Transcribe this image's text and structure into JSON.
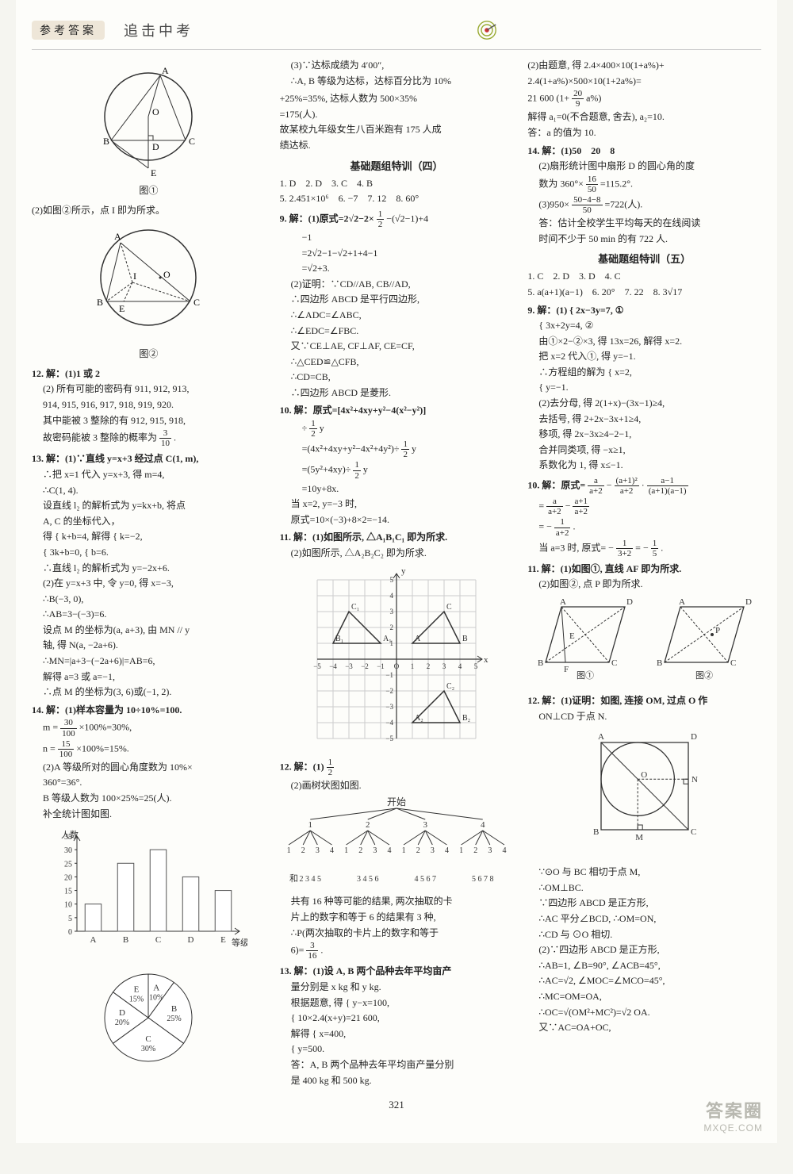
{
  "header": {
    "ref": "参考答案",
    "title": "追击中考"
  },
  "page_number": "321",
  "watermark": {
    "line1": "答案圈",
    "line2": "MXQE.COM"
  },
  "col1": {
    "fig1_label": "图①",
    "fig1": {
      "pts": {
        "A": "A",
        "B": "B",
        "C": "C",
        "D": "D",
        "E": "E",
        "O": "O"
      }
    },
    "l_2": "(2)如图②所示，点 I 即为所求。",
    "fig2_label": "图②",
    "fig2": {
      "pts": {
        "A": "A",
        "B": "B",
        "C": "C",
        "E": "E",
        "O": "O",
        "I": "I"
      }
    },
    "q12_head": "12. 解：(1)1 或 2",
    "q12_a": "(2) 所有可能的密码有 911, 912, 913,",
    "q12_b": "914, 915, 916, 917, 918, 919, 920.",
    "q12_c": "其中能被 3 整除的有 912, 915, 918,",
    "q12_d_pre": "故密码能被 3 整除的概率为",
    "q12_frac_n": "3",
    "q12_frac_d": "10",
    "q12_d_post": ".",
    "q13_head": "13. 解：(1)∵直线 y=x+3 经过点 C(1, m),",
    "q13_a": "∴把 x=1 代入 y=x+3, 得 m=4,",
    "q13_b": "∴C(1, 4).",
    "q13_c": "设直线 l₂ 的解析式为 y=kx+b, 将点",
    "q13_d": "A, C 的坐标代入，",
    "q13_e": "得 { k+b=4,  解得 { k=−2,",
    "q13_e2": "   { 3k+b=0,      { b=6.",
    "q13_f": "∴直线 l₂ 的解析式为 y=−2x+6.",
    "q13_g": "(2)在 y=x+3 中, 令 y=0, 得 x=−3,",
    "q13_h": "∴B(−3, 0),",
    "q13_i": "∴AB=3−(−3)=6.",
    "q13_j": "设点 M 的坐标为(a, a+3), 由 MN // y",
    "q13_k": "轴, 得 N(a, −2a+6).",
    "q13_l": "∴MN=|a+3−(−2a+6)|=AB=6,",
    "q13_m": "解得 a=3 或 a=−1,",
    "q13_n": "∴点 M 的坐标为(3, 6)或(−1, 2).",
    "q14_head": "14. 解：(1)样本容量为 10÷10%=100.",
    "q14_m_pre": "m =",
    "q14_m_n": "30",
    "q14_m_d": "100",
    "q14_m_post": "×100%=30%,",
    "q14_n_pre": "n =",
    "q14_n_n": "15",
    "q14_n_d": "100",
    "q14_n_post": "×100%=15%.",
    "q14_a": "(2)A 等级所对的圆心角度数为 10%×",
    "q14_b": "360°=36°.",
    "q14_c": "B 等级人数为 100×25%=25(人).",
    "q14_d": "补全统计图如图.",
    "bar": {
      "type": "bar",
      "ylabel": "人数",
      "xlabel": "等级",
      "categories": [
        "A",
        "B",
        "C",
        "D",
        "E"
      ],
      "values": [
        10,
        25,
        30,
        20,
        15
      ],
      "ylim": [
        0,
        35
      ],
      "ytick_step": 5,
      "yticks": [
        "0",
        "5",
        "10",
        "15",
        "20",
        "25",
        "30",
        "35"
      ],
      "bar_color": "#ffffff",
      "bar_stroke": "#555555",
      "axis_color": "#333333",
      "bar_width": 0.5
    },
    "pie": {
      "type": "pie",
      "slices": [
        {
          "label": "A",
          "pct": "10%",
          "value": 10
        },
        {
          "label": "B",
          "pct": "25%",
          "value": 25
        },
        {
          "label": "C",
          "pct": "30%",
          "value": 30
        },
        {
          "label": "D",
          "pct": "20%",
          "value": 20
        },
        {
          "label": "E",
          "pct": "15%",
          "value": 15
        }
      ],
      "fill_color": "#ffffff",
      "stroke_color": "#333333"
    },
    "q14_e": "(3)∵达标成绩为 4′00″,",
    "q14_f": "∴A, B 等级为达标，达标百分比为 10%"
  },
  "col2": {
    "cont_a": "+25%=35%, 达标人数为 500×35%",
    "cont_b": "=175(人).",
    "cont_c": "故某校九年级女生八百米跑有 175 人成",
    "cont_d": "绩达标.",
    "sec4_title": "基础题组特训（四）",
    "s4_r1": "1. D　2. D　3. C　4. B",
    "s4_r2": "5. 2.451×10⁶　6. −7　7. 12　8. 60°",
    "q9_head": "9. 解：(1)原式=2√2−2×",
    "q9_frac1_n": "1",
    "q9_frac1_d": "2",
    "q9_head_b": "−(√2−1)+4",
    "q9_a": "−1",
    "q9_b": "=2√2−1−√2+1+4−1",
    "q9_c": "=√2+3.",
    "q9_d": "(2)证明：∵CD//AB, CB//AD,",
    "q9_e": "∴四边形 ABCD 是平行四边形,",
    "q9_f": "∴∠ADC=∠ABC,",
    "q9_g": "∴∠EDC=∠FBC.",
    "q9_h": "又∵CE⊥AE, CF⊥AF, CE=CF,",
    "q9_i": "∴△CED≌△CFB,",
    "q9_j": "∴CD=CB,",
    "q9_k": "∴四边形 ABCD 是菱形.",
    "q10_head": "10. 解：原式=[4x²+4xy+y²−4(x²−y²)]",
    "q10_a_pre": "÷",
    "q10_a_n": "1",
    "q10_a_d": "2",
    "q10_a_post": " y",
    "q10_b": "=(4x²+4xy+y²−4x²+4y²)÷",
    "q10_b_n": "1",
    "q10_b_d": "2",
    "q10_b_post": " y",
    "q10_c_pre": "=(5y²+4xy)÷",
    "q10_c_n": "1",
    "q10_c_d": "2",
    "q10_c_post": " y",
    "q10_d": "=10y+8x.",
    "q10_e": "当 x=2, y=−3 时,",
    "q10_f": "原式=10×(−3)+8×2=−14.",
    "q11_head": "11. 解：(1)如图所示, △A₁B₁C₁ 即为所求.",
    "q11_a": "(2)如图所示, △A₂B₂C₂ 即为所求.",
    "grid": {
      "type": "scatter",
      "xlim": [
        -5,
        5
      ],
      "ylim": [
        -5,
        5
      ],
      "xticks": [
        "−5",
        "−4",
        "−3",
        "−2",
        "−1",
        "O",
        "1",
        "2",
        "3",
        "4",
        "5"
      ],
      "yticks": [
        "−5",
        "−4",
        "−3",
        "−2",
        "−1",
        "",
        "1",
        "2",
        "3",
        "4",
        "5"
      ],
      "grid_color": "#cccccc",
      "axis_color": "#333333",
      "xlabel": "x",
      "ylabel": "y",
      "tri_A": {
        "pts": [
          [
            1,
            1
          ],
          [
            4,
            1
          ],
          [
            3,
            3
          ]
        ],
        "labels": [
          "A",
          "B",
          "C"
        ],
        "stroke": "#333"
      },
      "tri_1": {
        "pts": [
          [
            -1,
            1
          ],
          [
            -4,
            1
          ],
          [
            -3,
            3
          ]
        ],
        "labels": [
          "A₁",
          "B₁",
          "C₁"
        ],
        "stroke": "#333"
      },
      "tri_2": {
        "pts": [
          [
            1,
            -4
          ],
          [
            4,
            -4
          ],
          [
            3,
            -2
          ]
        ],
        "labels": [
          "A₂",
          "B₂",
          "C₂"
        ],
        "stroke": "#333"
      }
    },
    "q12_head": "12. 解：(1)",
    "q12_n": "1",
    "q12_d": "2",
    "q12_a": "(2)画树状图如图.",
    "tree": {
      "root": "开始",
      "level1": [
        "1",
        "2",
        "3",
        "4"
      ],
      "level2": [
        "1 2 3 4",
        "1 2 3 4",
        "1 2 3 4",
        "1 2 3 4"
      ],
      "sumlabel": "和",
      "sums": [
        "2 3 4 5",
        "3 4 5 6",
        "4 5 6 7",
        "5 6 7 8"
      ],
      "stroke": "#333333"
    },
    "q12_b": "共有 16 种等可能的结果, 两次抽取的卡",
    "q12_c": "片上的数字和等于 6 的结果有 3 种,",
    "q12_d_pre": "∴P(两次抽取的卡片上的数字和等于",
    "q12_e_pre": "6)=",
    "q12_e_n": "3",
    "q12_e_d": "16",
    "q12_e_post": ".",
    "q13_head": "13. 解：(1)设 A, B 两个品种去年平均亩产",
    "q13_a": "量分别是 x kg 和 y kg.",
    "q13_b": "根据题意, 得 { y−x=100,",
    "q13_b2": "            { 10×2.4(x+y)=21 600,",
    "q13_c": "解得 { x=400,",
    "q13_c2": "     { y=500.",
    "q13_d": "答：A, B 两个品种去年平均亩产量分别",
    "q13_e": "是 400 kg 和 500 kg."
  },
  "col3": {
    "c_a": "(2)由题意, 得 2.4×400×10(1+a%)+",
    "c_b": "2.4(1+a%)×500×10(1+2a%)=",
    "c_c_pre": "21 600",
    "c_c_par_l": "(",
    "c_c_mid": "1+",
    "c_c_n": "20",
    "c_c_d": "9",
    "c_c_post": "a%",
    "c_c_par_r": ")",
    "c_d": "解得 a₁=0(不合题意, 舍去), a₂=10.",
    "c_e": "答：a 的值为 10.",
    "q14_head": "14. 解：(1)50　20　8",
    "q14_a": "(2)扇形统计图中扇形 D 的圆心角的度",
    "q14_b_pre": "数为 360°×",
    "q14_b_n": "16",
    "q14_b_d": "50",
    "q14_b_post": "=115.2°.",
    "q14_c_pre": "(3)950×",
    "q14_c_n": "50−4−8",
    "q14_c_d": "50",
    "q14_c_post": "=722(人).",
    "q14_d": "答：估计全校学生平均每天的在线阅读",
    "q14_e": "时间不少于 50 min 的有 722 人.",
    "sec5_title": "基础题组特训（五）",
    "s5_r1": "1. C　2. D　3. D　4. C",
    "s5_r2": "5. a(a+1)(a−1)　6. 20°　7. 22　8. 3√17",
    "q9_head": "9. 解：(1) { 2x−3y=7, ①",
    "q9_a": "          { 3x+2y=4, ②",
    "q9_b": "由①×2−②×3, 得 13x=26, 解得 x=2.",
    "q9_c": "把 x=2 代入①, 得 y=−1.",
    "q9_d": "∴方程组的解为 { x=2,",
    "q9_d2": "              { y=−1.",
    "q9_e": "(2)去分母, 得 2(1+x)−(3x−1)≥4,",
    "q9_f": "去括号, 得 2+2x−3x+1≥4,",
    "q9_g": "移项, 得 2x−3x≥4−2−1,",
    "q9_h": "合并同类项, 得 −x≥1,",
    "q9_i": "系数化为 1, 得 x≤−1.",
    "q10_head_pre": "10. 解：原式=",
    "q10_t1_n": "a",
    "q10_t1_d": "a+2",
    "q10_minus": "−",
    "q10_t2_n": "(a+1)²",
    "q10_t2_d": "a+2",
    "q10_dot": "·",
    "q10_t3_n": "a−1",
    "q10_t3_d": "(a+1)(a−1)",
    "q10_a_pre": "=",
    "q10_a1_n": "a",
    "q10_a1_d": "a+2",
    "q10_a_minus": "−",
    "q10_a2_n": "a+1",
    "q10_a2_d": "a+2",
    "q10_b_pre": "= −",
    "q10_b_n": "1",
    "q10_b_d": "a+2",
    "q10_b_post": ".",
    "q10_c_pre": "当 a=3 时, 原式= −",
    "q10_c_n": "1",
    "q10_c_d": "3+2",
    "q10_c_eq": "= −",
    "q10_c2_n": "1",
    "q10_c2_d": "5",
    "q10_c_post": ".",
    "q11_head": "11. 解：(1)如图①, 直线 AF 即为所求.",
    "q11_a": "(2)如图②, 点 P 即为所求.",
    "rhombus": {
      "pts": {
        "A": "A",
        "B": "B",
        "C": "C",
        "D": "D",
        "E": "E",
        "F": "F",
        "P": "P"
      },
      "stroke": "#333333",
      "caption1": "图①",
      "caption2": "图②"
    },
    "q12_head": "12. 解：(1)证明：如图, 连接 OM, 过点 O 作",
    "q12_a": "ON⊥CD 于点 N.",
    "circle_sq": {
      "pts": {
        "A": "A",
        "B": "B",
        "C": "C",
        "D": "D",
        "O": "O",
        "M": "M",
        "N": "N"
      },
      "stroke": "#333333"
    },
    "q12_b": "∵⊙O 与 BC 相切于点 M,",
    "q12_c": "∴OM⊥BC.",
    "q12_d": "∵四边形 ABCD 是正方形,",
    "q12_e": "∴AC 平分∠BCD, ∴OM=ON,",
    "q12_f": "∴CD 与 ⊙O 相切.",
    "q12_g": "(2)∵四边形 ABCD 是正方形,",
    "q12_h": "∴AB=1, ∠B=90°, ∠ACB=45°,",
    "q12_i": "∴AC=√2, ∠MOC=∠MCO=45°,",
    "q12_j": "∴MC=OM=OA,",
    "q12_k": "∴OC=√(OM²+MC²)=√2 OA.",
    "q12_l": "又∵AC=OA+OC,"
  }
}
